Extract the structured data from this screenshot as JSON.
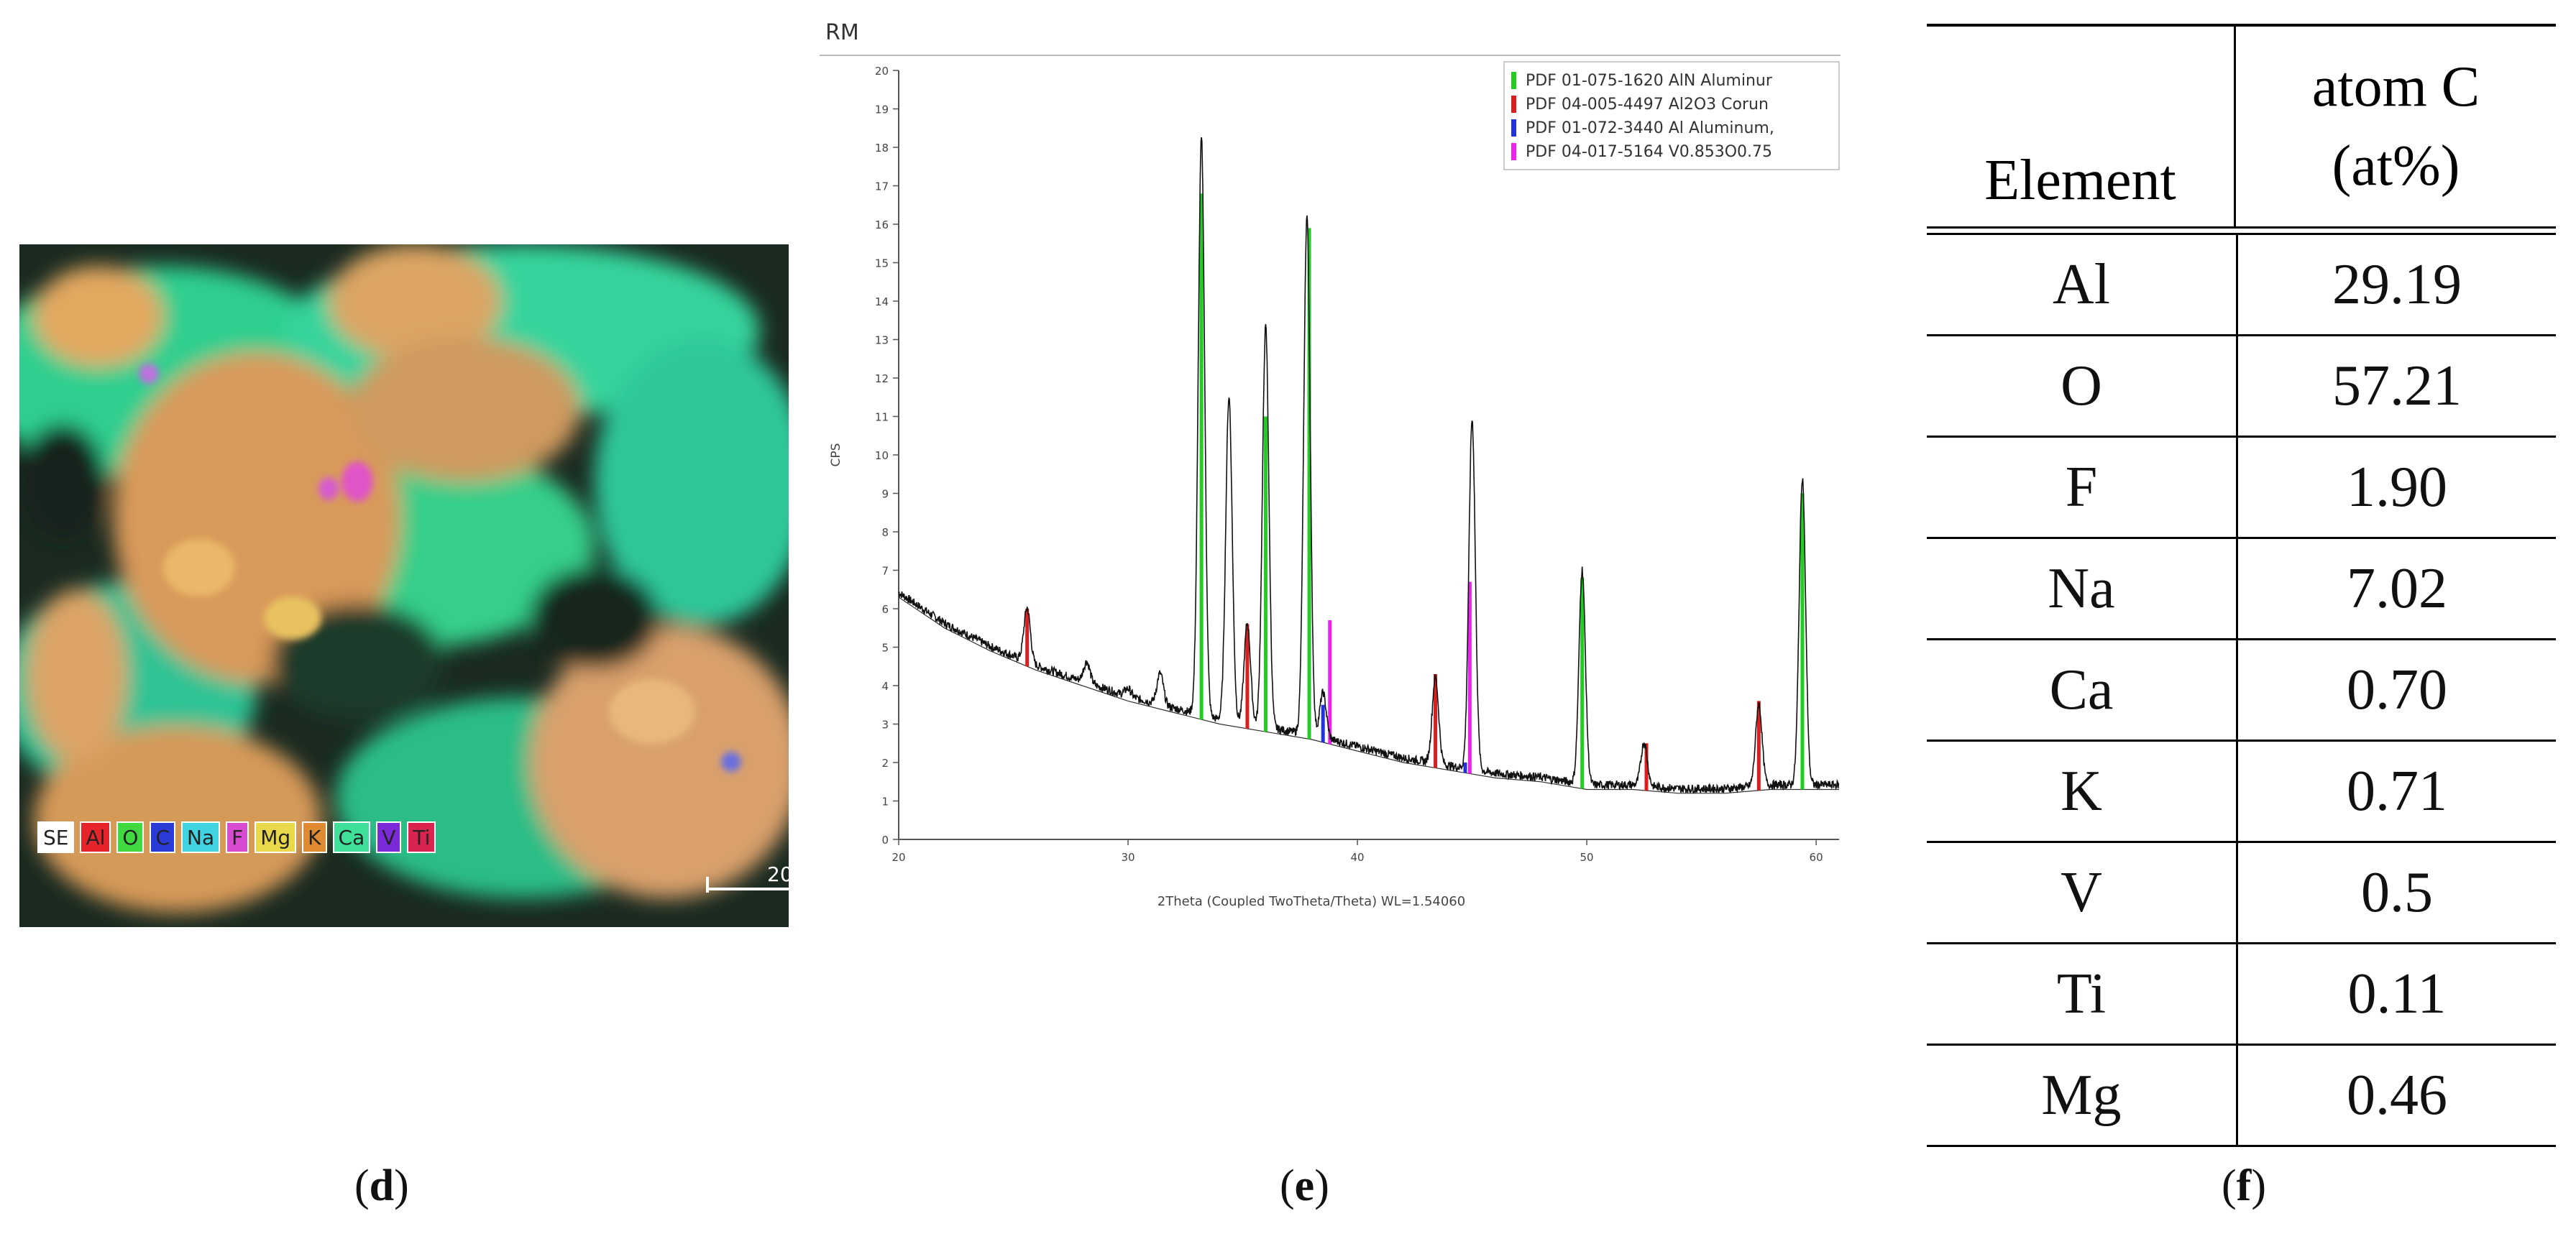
{
  "panel_d": {
    "legend": [
      {
        "label": "SE",
        "color": "#ffffff"
      },
      {
        "label": "Al",
        "color": "#e8242b"
      },
      {
        "label": "O",
        "color": "#41d941"
      },
      {
        "label": "C",
        "color": "#2a3cd8"
      },
      {
        "label": "Na",
        "color": "#3fd4e0"
      },
      {
        "label": "F",
        "color": "#d64bd0"
      },
      {
        "label": "Mg",
        "color": "#e8d84a"
      },
      {
        "label": "K",
        "color": "#e08a32"
      },
      {
        "label": "Ca",
        "color": "#3fe09a"
      },
      {
        "label": "V",
        "color": "#7a2ad8"
      },
      {
        "label": "Ti",
        "color": "#d8244e"
      }
    ],
    "scale_label": "20"
  },
  "panel_e": {
    "header": "RM",
    "chart_data": {
      "type": "line",
      "title": "",
      "xlabel": "2Theta (Coupled TwoTheta/Theta) WL=1.54060",
      "ylabel": "CPS",
      "xlim": [
        20,
        61
      ],
      "ylim": [
        0,
        20
      ],
      "x_ticks": [
        20,
        30,
        40,
        50,
        60
      ],
      "y_ticks": [
        0,
        1,
        2,
        3,
        4,
        5,
        6,
        7,
        8,
        9,
        10,
        11,
        12,
        13,
        14,
        15,
        16,
        17,
        18,
        19,
        20
      ],
      "background_curve": [
        [
          20,
          6.3
        ],
        [
          22,
          5.5
        ],
        [
          24,
          4.9
        ],
        [
          26,
          4.4
        ],
        [
          28,
          4.0
        ],
        [
          30,
          3.6
        ],
        [
          32,
          3.3
        ],
        [
          34,
          3.0
        ],
        [
          36,
          2.8
        ],
        [
          38,
          2.6
        ],
        [
          40,
          2.3
        ],
        [
          42,
          2.0
        ],
        [
          44,
          1.8
        ],
        [
          46,
          1.6
        ],
        [
          48,
          1.5
        ],
        [
          50,
          1.3
        ],
        [
          52,
          1.3
        ],
        [
          54,
          1.2
        ],
        [
          56,
          1.2
        ],
        [
          58,
          1.3
        ],
        [
          61,
          1.3
        ]
      ],
      "peaks": [
        {
          "x": 25.6,
          "h": 5.9
        },
        {
          "x": 28.2,
          "h": 4.5
        },
        {
          "x": 30.0,
          "h": 3.8
        },
        {
          "x": 31.4,
          "h": 4.2
        },
        {
          "x": 33.2,
          "h": 18.1
        },
        {
          "x": 34.4,
          "h": 11.4
        },
        {
          "x": 35.2,
          "h": 5.5
        },
        {
          "x": 36.0,
          "h": 13.2
        },
        {
          "x": 37.8,
          "h": 16.1
        },
        {
          "x": 38.5,
          "h": 3.7
        },
        {
          "x": 43.4,
          "h": 4.1
        },
        {
          "x": 45.0,
          "h": 10.8
        },
        {
          "x": 49.8,
          "h": 6.9
        },
        {
          "x": 52.5,
          "h": 2.4
        },
        {
          "x": 57.5,
          "h": 3.4
        },
        {
          "x": 59.4,
          "h": 9.3
        }
      ],
      "reference_series": [
        {
          "name": "PDF 01-075-1620 AlN Aluminur",
          "color": "#22cc22",
          "sticks": [
            [
              33.2,
              16.8
            ],
            [
              36.0,
              11.0
            ],
            [
              37.9,
              15.9
            ],
            [
              49.8,
              6.8
            ],
            [
              59.4,
              9.0
            ]
          ]
        },
        {
          "name": "PDF 04-005-4497 Al2O3 Corun",
          "color": "#dd1e1e",
          "sticks": [
            [
              25.6,
              6.0
            ],
            [
              35.2,
              5.6
            ],
            [
              43.4,
              4.3
            ],
            [
              52.6,
              2.5
            ],
            [
              57.5,
              3.6
            ]
          ]
        },
        {
          "name": "PDF 01-072-3440 Al Aluminum,",
          "color": "#2233dd",
          "sticks": [
            [
              38.5,
              3.5
            ],
            [
              44.7,
              2.0
            ]
          ]
        },
        {
          "name": "PDF 04-017-5164 V0.853O0.75",
          "color": "#ee22ee",
          "sticks": [
            [
              38.8,
              5.7
            ],
            [
              44.9,
              6.7
            ]
          ]
        }
      ]
    }
  },
  "panel_f": {
    "header_element": "Element",
    "header_atom_line1": "atom C",
    "header_atom_line2": "(at%)",
    "rows": [
      {
        "element": "Al",
        "value": "29.19"
      },
      {
        "element": "O",
        "value": "57.21"
      },
      {
        "element": "F",
        "value": "1.90"
      },
      {
        "element": "Na",
        "value": "7.02"
      },
      {
        "element": "Ca",
        "value": "0.70"
      },
      {
        "element": "K",
        "value": "0.71"
      },
      {
        "element": "V",
        "value": "0.5"
      },
      {
        "element": "Ti",
        "value": "0.11"
      },
      {
        "element": "Mg",
        "value": "0.46"
      }
    ]
  },
  "captions": {
    "d": "d",
    "e": "e",
    "f": "f"
  }
}
